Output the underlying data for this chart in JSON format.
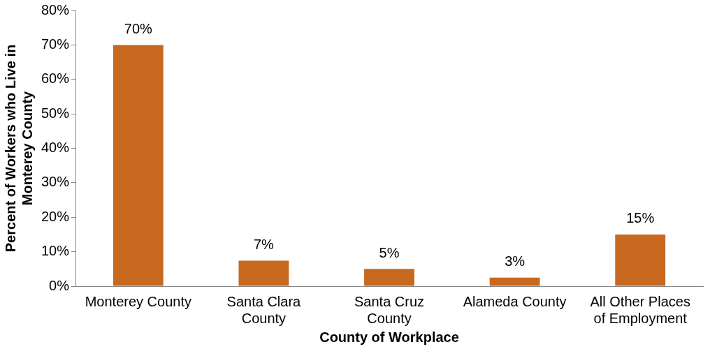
{
  "chart_data": {
    "type": "bar",
    "xlabel": "County of Workplace",
    "ylabel": "Percent of Workers who Live in Monterey County",
    "categories": [
      "Monterey County",
      "Santa Clara County",
      "Santa Cruz County",
      "Alameda County",
      "All Other Places of Employment"
    ],
    "values": [
      70,
      7.4,
      5,
      2.5,
      15
    ],
    "value_labels": [
      "70%",
      "7%",
      "5%",
      "3%",
      "15%"
    ],
    "color": "#c8681e",
    "ylim": [
      0,
      80
    ],
    "yticks": [
      {
        "value": 0,
        "label": "0%"
      },
      {
        "value": 10,
        "label": "10%"
      },
      {
        "value": 20,
        "label": "20%"
      },
      {
        "value": 30,
        "label": "30%"
      },
      {
        "value": 40,
        "label": "40%"
      },
      {
        "value": 50,
        "label": "50%"
      },
      {
        "value": 60,
        "label": "60%"
      },
      {
        "value": 70,
        "label": "70%"
      },
      {
        "value": 80,
        "label": "80%"
      }
    ],
    "grid": false,
    "legend": false
  }
}
